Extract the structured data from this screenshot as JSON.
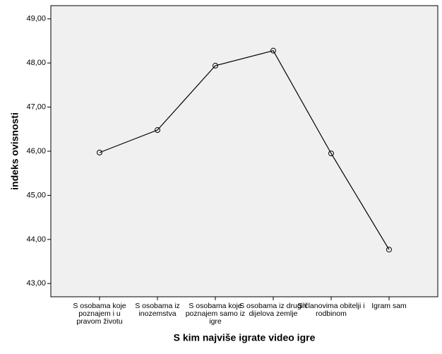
{
  "chart_data": {
    "type": "line",
    "x_label": "S kim najviše igrate video igre",
    "y_label": "indeks ovisnosti",
    "categories": [
      "S osobama koje poznajem i u pravom životu",
      "S osobama iz inozemstva",
      "S osobama koje poznajem samo iz igre",
      "S osobama iz drugih dijelova zemlje",
      "S članovima obitelji i rodbinom",
      "Igram sam"
    ],
    "values": [
      45.97,
      46.48,
      47.94,
      48.28,
      45.95,
      43.77
    ],
    "color": "#000000",
    "ylim": [
      42.7,
      49.3
    ],
    "yticks": [
      {
        "value": 43,
        "label": "43,00"
      },
      {
        "value": 44,
        "label": "44,00"
      },
      {
        "value": 45,
        "label": "45,00"
      },
      {
        "value": 46,
        "label": "46,00"
      },
      {
        "value": 47,
        "label": "47,00"
      },
      {
        "value": 48,
        "label": "48,00"
      },
      {
        "value": 49,
        "label": "49,00"
      }
    ]
  }
}
